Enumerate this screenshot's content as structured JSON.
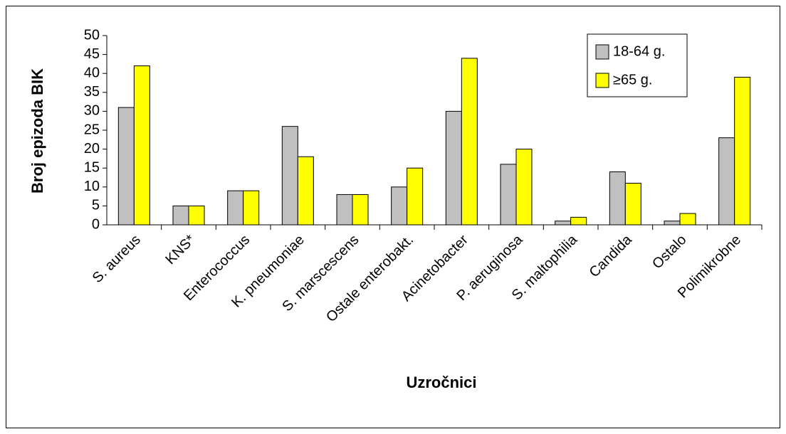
{
  "chart_data": {
    "type": "bar",
    "ylabel": "Broj epizoda BIK",
    "xlabel": "Uzročnici",
    "categories": [
      "S. aureus",
      "KNS*",
      "Enterococcus",
      "K. pneumoniae",
      "S. marscescens",
      "Ostale enterobakt.",
      "Acinetobacter",
      "P. aeruginosa",
      "S. maltophilia",
      "Candida",
      "Ostalo",
      "Polimikrobne"
    ],
    "series": [
      {
        "name": "18-64 g.",
        "color": "#c0c0c0",
        "values": [
          31,
          5,
          9,
          26,
          8,
          10,
          30,
          16,
          1,
          14,
          1,
          23
        ]
      },
      {
        "name": "≥65 g.",
        "color": "#ffff00",
        "values": [
          42,
          5,
          9,
          18,
          8,
          15,
          44,
          20,
          2,
          11,
          3,
          39
        ]
      }
    ],
    "ylim": [
      0,
      50
    ],
    "yticks": [
      0,
      5,
      10,
      15,
      20,
      25,
      30,
      35,
      40,
      45,
      50
    ],
    "legend": "top-right"
  }
}
